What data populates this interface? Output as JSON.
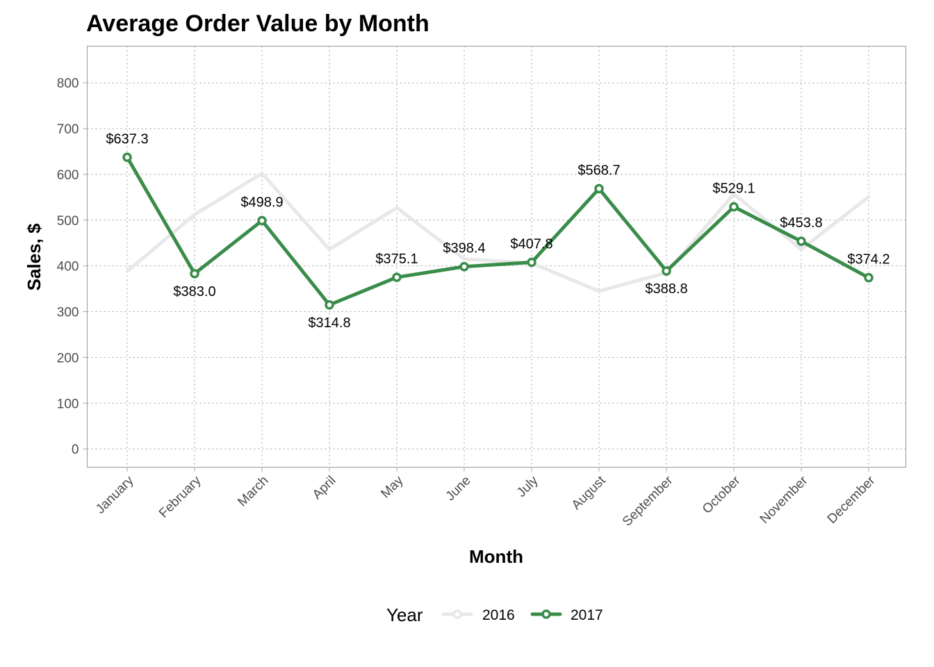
{
  "chart_data": {
    "type": "line",
    "title": "Average Order Value by Month",
    "xlabel": "Month",
    "ylabel": "Sales, $",
    "categories": [
      "January",
      "February",
      "March",
      "April",
      "May",
      "June",
      "July",
      "August",
      "September",
      "October",
      "November",
      "December"
    ],
    "ylim": [
      -40,
      880
    ],
    "yticks": [
      0,
      100,
      200,
      300,
      400,
      500,
      600,
      700,
      800
    ],
    "grid": true,
    "legend_position": "bottom",
    "legend_title": "Year",
    "series": [
      {
        "name": "2016",
        "color": "#e8e8e8",
        "values": [
          388,
          512,
          602,
          436,
          527,
          415,
          406,
          345,
          385,
          557,
          436,
          551
        ],
        "markers": false,
        "labels": []
      },
      {
        "name": "2017",
        "color": "#3a8c4a",
        "values": [
          637.3,
          383.0,
          498.9,
          314.8,
          375.1,
          398.4,
          407.8,
          568.7,
          388.8,
          529.1,
          453.8,
          374.2
        ],
        "markers": true,
        "labels": [
          "$637.3",
          "$383.0",
          "$498.9",
          "$314.8",
          "$375.1",
          "$398.4",
          "$407.8",
          "$568.7",
          "$388.8",
          "$529.1",
          "$453.8",
          "$374.2"
        ],
        "label_positions": [
          "above",
          "below",
          "above",
          "below",
          "above",
          "above",
          "above",
          "above",
          "below",
          "above",
          "above",
          "above"
        ]
      }
    ]
  }
}
